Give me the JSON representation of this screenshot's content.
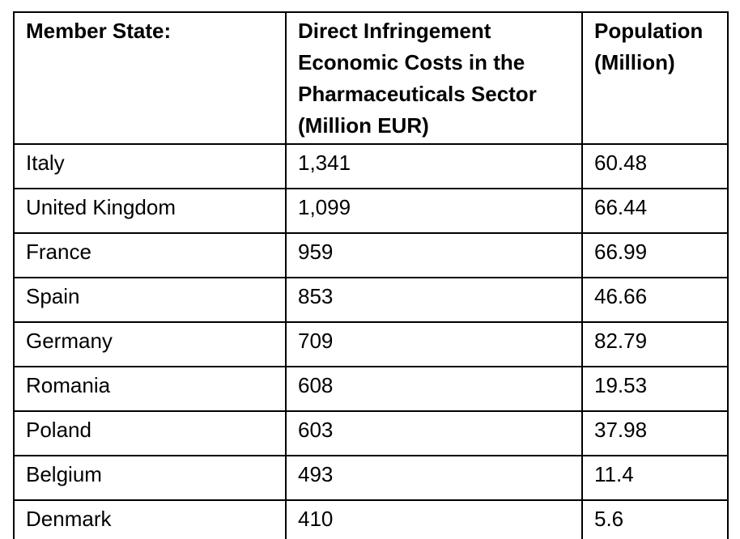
{
  "colors": {
    "background": "#ffffff",
    "border": "#000000",
    "text": "#000000"
  },
  "table": {
    "columns": [
      "Member State:",
      "Direct Infringement Economic Costs in the Pharmaceuticals Sector (Million EUR)",
      "Population (Million)"
    ],
    "rows": [
      {
        "state": "Italy",
        "cost": "1,341",
        "population": "60.48"
      },
      {
        "state": "United Kingdom",
        "cost": "1,099",
        "population": "66.44"
      },
      {
        "state": "France",
        "cost": "959",
        "population": "66.99"
      },
      {
        "state": "Spain",
        "cost": "853",
        "population": "46.66"
      },
      {
        "state": "Germany",
        "cost": "709",
        "population": "82.79"
      },
      {
        "state": "Romania",
        "cost": "608",
        "population": "19.53"
      },
      {
        "state": "Poland",
        "cost": "603",
        "population": "37.98"
      },
      {
        "state": "Belgium",
        "cost": "493",
        "population": "11.4"
      },
      {
        "state": "Denmark",
        "cost": "410",
        "population": "5.6"
      }
    ]
  }
}
